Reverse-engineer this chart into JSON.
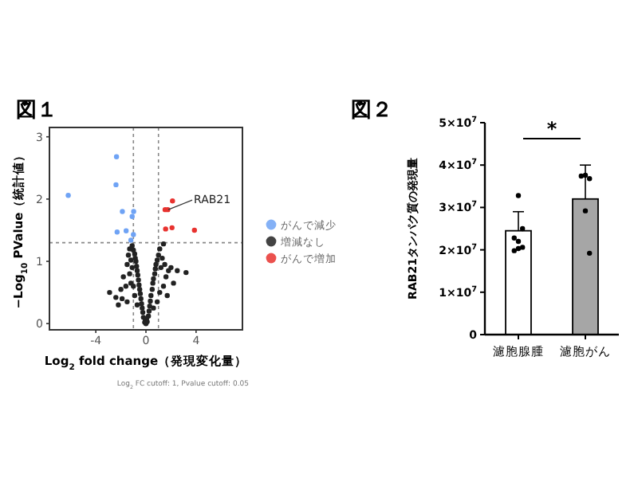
{
  "chart_data": [
    {
      "type": "scatter",
      "title": "図１",
      "xlabel": "Log$_{2}$ fold change（発現変化量）",
      "ylabel": "−Log$_{10}$ PValue（統計値）",
      "xlim": [
        -7.7,
        7.7
      ],
      "ylim": [
        -0.1,
        3.15
      ],
      "xticks": [
        -4,
        0,
        4
      ],
      "yticks": [
        0,
        1,
        2,
        3
      ],
      "marker": "circle",
      "legend": "right",
      "series": [
        {
          "name": "がんで減少",
          "color": "#6fa3f5",
          "x": [
            -6.2,
            -2.35,
            -2.39,
            -1.88,
            -0.98,
            -1.1,
            -2.3,
            -1.58,
            -1.0,
            -1.2
          ],
          "values": [
            2.06,
            2.68,
            2.23,
            1.8,
            1.8,
            1.72,
            1.47,
            1.49,
            1.43,
            1.34
          ]
        },
        {
          "name": "増減なし",
          "color": "#222222",
          "x": [
            -0.1,
            -0.2,
            -0.25,
            -0.3,
            -0.35,
            -0.4,
            -0.45,
            -0.5,
            -0.55,
            -0.6,
            -0.65,
            -0.7,
            -0.75,
            -0.8,
            -0.85,
            -0.9,
            -1.0,
            -1.1,
            -1.3,
            -1.4,
            -1.2,
            -1.5,
            -1.1,
            -1.3,
            -1.8,
            -1.2,
            -1.6,
            -2.0,
            -2.4,
            -2.9,
            -1.9,
            -1.5,
            -0.9,
            -0.7,
            -1.0,
            -2.2,
            0.1,
            0.2,
            0.25,
            0.3,
            0.35,
            0.4,
            0.5,
            0.55,
            0.6,
            0.7,
            0.75,
            0.8,
            0.9,
            1.0,
            1.1,
            1.4,
            1.3,
            1.5,
            1.2,
            1.8,
            1.6,
            2.0,
            2.5,
            3.2,
            1.4,
            2.2,
            1.1,
            0.9,
            1.7,
            0.6,
            0.0,
            -0.05,
            0.05
          ],
          "values": [
            0.02,
            0.1,
            0.18,
            0.25,
            0.32,
            0.4,
            0.48,
            0.55,
            0.62,
            0.7,
            0.78,
            0.85,
            0.92,
            1.0,
            1.05,
            1.12,
            1.18,
            1.25,
            1.2,
            1.1,
            1.02,
            0.95,
            0.9,
            0.8,
            0.75,
            0.65,
            0.6,
            0.55,
            0.42,
            0.5,
            0.4,
            0.35,
            0.45,
            0.3,
            0.6,
            0.3,
            0.03,
            0.12,
            0.2,
            0.28,
            0.36,
            0.45,
            0.55,
            0.65,
            0.72,
            0.8,
            0.88,
            0.95,
            1.02,
            1.1,
            1.2,
            1.28,
            1.05,
            0.95,
            0.9,
            0.85,
            0.75,
            0.9,
            0.85,
            0.82,
            0.6,
            0.65,
            0.5,
            0.35,
            0.45,
            0.25,
            0.0,
            0.05,
            0.08
          ]
        },
        {
          "name": "がんで増加",
          "color": "#e8322f",
          "x": [
            2.12,
            1.53,
            1.74,
            2.08,
            1.57,
            3.87
          ],
          "values": [
            1.97,
            1.83,
            1.83,
            1.54,
            1.52,
            1.5
          ]
        }
      ],
      "ref_lines": [
        {
          "axis": "x",
          "value": -1,
          "line_style": "dashed",
          "color": "#888888"
        },
        {
          "axis": "x",
          "value": 1,
          "line_style": "dashed",
          "color": "#888888"
        },
        {
          "axis": "y",
          "value": 1.3,
          "line_style": "dashed",
          "color": "#888888"
        }
      ],
      "annotations": [
        {
          "text": "RAB21",
          "x": 1.53,
          "y": 1.83
        },
        "Log$_{2}$ FC cutoff: 1, Pvalue cutoff: 0.05"
      ]
    },
    {
      "type": "bar",
      "title": "図２",
      "ylabel": "RAB21タンパク質の発現量",
      "categories": [
        "濾胞腺腫",
        "濾胞がん"
      ],
      "ylim": [
        0,
        50000000
      ],
      "yticks": [
        0,
        {
          "value": 10000000,
          "label": "1×10$^{7}$"
        },
        {
          "value": 20000000,
          "label": "2×10$^{7}$"
        },
        {
          "value": 30000000,
          "label": "3×10$^{7}$"
        },
        {
          "value": 40000000,
          "label": "4×10$^{7}$"
        },
        {
          "value": 50000000,
          "label": "5×10$^{7}$"
        }
      ],
      "series": [
        {
          "type": "bar",
          "values": [
            24500000,
            32000000
          ],
          "colors": [
            "#ffffff",
            "#a6a6a6"
          ],
          "errors": [
            [
              24500000,
              29000000
            ],
            [
              32000000,
              40000000
            ]
          ]
        },
        {
          "type": "scatter",
          "color": "#000000",
          "x": [
            "濾胞腺腫",
            "濾胞腺腫",
            "濾胞腺腫",
            "濾胞腺腫",
            "濾胞腺腫",
            "濾胞腺腫",
            "濾胞腺腫",
            "濾胞がん",
            "濾胞がん",
            "濾胞がん",
            "濾胞がん",
            "濾胞がん"
          ],
          "values": [
            32800000,
            25000000,
            22800000,
            22000000,
            20600000,
            19800000,
            20300000,
            37600000,
            36800000,
            37400000,
            29200000,
            19200000
          ]
        }
      ],
      "annotations": [
        "*"
      ]
    }
  ]
}
